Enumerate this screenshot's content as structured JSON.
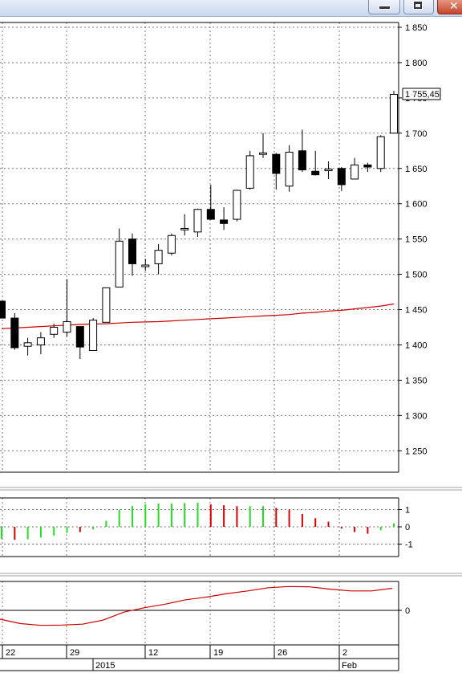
{
  "window": {
    "controls": [
      {
        "name": "minimize",
        "icon": "minimize-icon"
      },
      {
        "name": "maximize",
        "icon": "maximize-icon"
      },
      {
        "name": "close",
        "icon": "close-icon"
      }
    ]
  },
  "price_label": "1 755,45",
  "chart_data": [
    {
      "type": "candlestick",
      "title": "",
      "ylim": [
        1215,
        1860
      ],
      "y_ticks": [
        1850,
        1800,
        1750,
        1700,
        1650,
        1600,
        1550,
        1500,
        1450,
        1400,
        1350,
        1300,
        1250
      ],
      "y_tick_labels": [
        "1 850",
        "1 800",
        "1 750",
        "1 700",
        "1 650",
        "1 600",
        "1 550",
        "1 500",
        "1 450",
        "1 400",
        "1 350",
        "1 300",
        "1 250"
      ],
      "grid": true,
      "up_color": "#ffffff",
      "down_color": "#000000",
      "candles": [
        {
          "open": 1462,
          "high": 1462,
          "low": 1438,
          "close": 1438
        },
        {
          "open": 1438,
          "high": 1445,
          "low": 1393,
          "close": 1396
        },
        {
          "open": 1398,
          "high": 1410,
          "low": 1385,
          "close": 1403
        },
        {
          "open": 1400,
          "high": 1418,
          "low": 1387,
          "close": 1410
        },
        {
          "open": 1415,
          "high": 1430,
          "low": 1410,
          "close": 1425
        },
        {
          "open": 1418,
          "high": 1493,
          "low": 1412,
          "close": 1433
        },
        {
          "open": 1426,
          "high": 1426,
          "low": 1380,
          "close": 1397
        },
        {
          "open": 1392,
          "high": 1438,
          "low": 1392,
          "close": 1435
        },
        {
          "open": 1432,
          "high": 1481,
          "low": 1432,
          "close": 1481
        },
        {
          "open": 1482,
          "high": 1565,
          "low": 1482,
          "close": 1547
        },
        {
          "open": 1550,
          "high": 1558,
          "low": 1498,
          "close": 1515
        },
        {
          "open": 1512,
          "high": 1522,
          "low": 1505,
          "close": 1512
        },
        {
          "open": 1515,
          "high": 1543,
          "low": 1500,
          "close": 1534
        },
        {
          "open": 1530,
          "high": 1558,
          "low": 1527,
          "close": 1555
        },
        {
          "open": 1563,
          "high": 1585,
          "low": 1555,
          "close": 1565
        },
        {
          "open": 1560,
          "high": 1593,
          "low": 1553,
          "close": 1592
        },
        {
          "open": 1592,
          "high": 1627,
          "low": 1577,
          "close": 1578
        },
        {
          "open": 1577,
          "high": 1595,
          "low": 1563,
          "close": 1572
        },
        {
          "open": 1578,
          "high": 1620,
          "low": 1575,
          "close": 1619
        },
        {
          "open": 1622,
          "high": 1675,
          "low": 1620,
          "close": 1668
        },
        {
          "open": 1670,
          "high": 1700,
          "low": 1665,
          "close": 1672
        },
        {
          "open": 1670,
          "high": 1672,
          "low": 1620,
          "close": 1643
        },
        {
          "open": 1625,
          "high": 1683,
          "low": 1617,
          "close": 1673
        },
        {
          "open": 1675,
          "high": 1705,
          "low": 1645,
          "close": 1648
        },
        {
          "open": 1646,
          "high": 1675,
          "low": 1640,
          "close": 1641
        },
        {
          "open": 1648,
          "high": 1660,
          "low": 1635,
          "close": 1648
        },
        {
          "open": 1650,
          "high": 1652,
          "low": 1618,
          "close": 1627
        },
        {
          "open": 1635,
          "high": 1665,
          "low": 1635,
          "close": 1655
        },
        {
          "open": 1655,
          "high": 1658,
          "low": 1645,
          "close": 1652
        },
        {
          "open": 1650,
          "high": 1697,
          "low": 1645,
          "close": 1695
        },
        {
          "open": 1700,
          "high": 1760,
          "low": 1700,
          "close": 1755
        }
      ],
      "moving_average": {
        "color": "#cc0000",
        "values": [
          1423,
          1424,
          1425,
          1426,
          1427,
          1428,
          1429,
          1429.5,
          1430,
          1431,
          1432,
          1432.5,
          1433,
          1434,
          1435,
          1436,
          1437,
          1438,
          1439,
          1440,
          1441,
          1442,
          1443,
          1445,
          1446,
          1448,
          1449,
          1451,
          1453,
          1455,
          1458
        ]
      }
    },
    {
      "type": "bar",
      "ylim": [
        -1.8,
        1.8
      ],
      "y_ticks": [
        1,
        0,
        -1
      ],
      "y_tick_labels": [
        "1",
        "0",
        "-1"
      ],
      "positive_color": "#22dd22",
      "falling_color": "#dd0000",
      "values": [
        -0.7,
        -0.75,
        -0.72,
        -0.62,
        -0.5,
        -0.35,
        -0.3,
        -0.15,
        0.35,
        1.0,
        1.2,
        1.3,
        1.35,
        1.35,
        1.38,
        1.4,
        1.3,
        1.25,
        1.2,
        1.2,
        1.2,
        1.1,
        1.0,
        0.75,
        0.5,
        0.3,
        -0.1,
        -0.3,
        -0.4,
        -0.2,
        0.2
      ],
      "colors": [
        "green",
        "red",
        "green",
        "green",
        "green",
        "green",
        "red",
        "green",
        "green",
        "green",
        "green",
        "green",
        "green",
        "green",
        "green",
        "green",
        "red",
        "red",
        "red",
        "green",
        "green",
        "red",
        "red",
        "red",
        "red",
        "red",
        "red",
        "red",
        "red",
        "green",
        "green"
      ]
    },
    {
      "type": "line",
      "ylim": [
        -1.6,
        1.6
      ],
      "y_ticks": [
        0
      ],
      "y_tick_labels": [
        "0"
      ],
      "color": "#cc0000",
      "values": [
        -0.5,
        -0.75,
        -0.85,
        -0.83,
        -0.78,
        -0.55,
        -0.1,
        0.15,
        0.35,
        0.6,
        0.75,
        0.95,
        1.1,
        1.28,
        1.35,
        1.33,
        1.2,
        1.1,
        1.1,
        1.25
      ]
    }
  ],
  "time_axis": {
    "day_labels": [
      {
        "label": "22",
        "index": 0
      },
      {
        "label": "29",
        "index": 5
      },
      {
        "label": "12",
        "index": 11
      },
      {
        "label": "19",
        "index": 16
      },
      {
        "label": "26",
        "index": 21
      },
      {
        "label": "2",
        "index": 26
      }
    ],
    "period_labels": [
      {
        "label": "2015",
        "index": 7
      },
      {
        "label": "Feb",
        "index": 27
      }
    ]
  }
}
